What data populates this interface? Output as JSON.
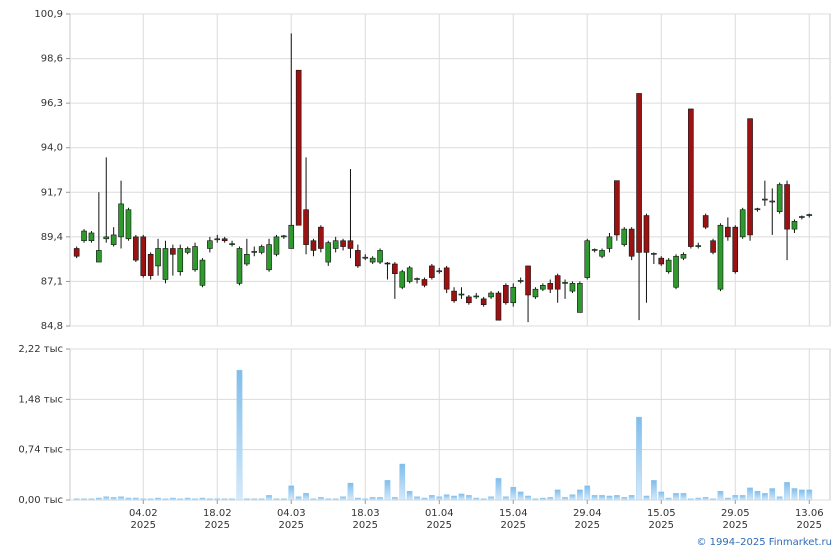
{
  "chart_data": [
    {
      "type": "candlestick",
      "x": [
        "2025-01-22",
        "2025-01-23",
        "2025-01-24",
        "2025-01-27",
        "2025-01-28",
        "2025-01-29",
        "2025-01-30",
        "2025-01-31",
        "2025-02-03",
        "2025-02-04",
        "2025-02-05",
        "2025-02-06",
        "2025-02-07",
        "2025-02-10",
        "2025-02-11",
        "2025-02-12",
        "2025-02-13",
        "2025-02-14",
        "2025-02-17",
        "2025-02-18",
        "2025-02-19",
        "2025-02-20",
        "2025-02-21",
        "2025-02-24",
        "2025-02-25",
        "2025-02-26",
        "2025-02-27",
        "2025-02-28",
        "2025-03-03",
        "2025-03-04",
        "2025-03-05",
        "2025-03-06",
        "2025-03-07",
        "2025-03-10",
        "2025-03-11",
        "2025-03-12",
        "2025-03-13",
        "2025-03-14",
        "2025-03-17",
        "2025-03-18",
        "2025-03-19",
        "2025-03-20",
        "2025-03-21",
        "2025-03-24",
        "2025-03-25",
        "2025-03-26",
        "2025-03-27",
        "2025-03-28",
        "2025-03-31",
        "2025-04-01",
        "2025-04-02",
        "2025-04-03",
        "2025-04-04",
        "2025-04-07",
        "2025-04-08",
        "2025-04-09",
        "2025-04-10",
        "2025-04-11",
        "2025-04-14",
        "2025-04-15",
        "2025-04-16",
        "2025-04-17",
        "2025-04-18",
        "2025-04-21",
        "2025-04-22",
        "2025-04-23",
        "2025-04-24",
        "2025-04-25",
        "2025-04-28",
        "2025-04-29",
        "2025-04-30",
        "2025-05-02",
        "2025-05-05",
        "2025-05-06",
        "2025-05-07",
        "2025-05-08",
        "2025-05-12",
        "2025-05-13",
        "2025-05-14",
        "2025-05-15",
        "2025-05-16",
        "2025-05-19",
        "2025-05-20",
        "2025-05-21",
        "2025-05-22",
        "2025-05-23",
        "2025-05-26",
        "2025-05-27",
        "2025-05-28",
        "2025-05-29",
        "2025-05-30",
        "2025-06-02",
        "2025-06-03",
        "2025-06-04",
        "2025-06-05",
        "2025-06-06",
        "2025-06-09",
        "2025-06-10",
        "2025-06-11",
        "2025-06-13"
      ],
      "open": [
        88.8,
        89.2,
        89.2,
        88.1,
        89.3,
        89.0,
        89.4,
        89.3,
        89.4,
        89.4,
        88.5,
        87.9,
        87.2,
        88.8,
        87.6,
        88.6,
        87.7,
        86.9,
        88.8,
        89.25,
        89.3,
        89.0,
        87.0,
        88.0,
        88.6,
        88.6,
        87.7,
        88.5,
        89.4,
        88.8,
        98.0,
        90.8,
        89.2,
        89.9,
        88.1,
        88.8,
        89.2,
        89.2,
        88.7,
        88.3,
        88.1,
        88.1,
        88.05,
        88.0,
        86.8,
        87.1,
        87.2,
        87.2,
        87.9,
        87.6,
        87.8,
        86.6,
        86.4,
        86.3,
        86.3,
        86.2,
        86.3,
        86.5,
        86.9,
        86.0,
        87.1,
        87.9,
        86.3,
        86.7,
        87.0,
        87.4,
        87.0,
        86.6,
        85.5,
        87.3,
        88.7,
        88.4,
        88.8,
        92.3,
        89.0,
        89.8,
        96.8,
        90.5,
        88.5,
        88.3,
        87.6,
        86.8,
        88.3,
        96.0,
        88.9,
        90.5,
        89.2,
        86.7,
        89.9,
        89.9,
        89.4,
        95.5,
        90.8,
        91.3,
        91.2,
        90.7,
        92.1,
        89.8,
        90.4,
        90.5
      ],
      "high": [
        88.9,
        89.8,
        89.7,
        91.7,
        93.5,
        89.9,
        92.3,
        90.9,
        89.5,
        89.5,
        88.6,
        89.3,
        89.2,
        89.0,
        89.0,
        88.9,
        89.1,
        88.3,
        89.4,
        89.5,
        89.4,
        89.2,
        88.9,
        89.3,
        88.9,
        89.0,
        89.3,
        89.5,
        89.5,
        99.9,
        98.0,
        93.5,
        89.3,
        90.0,
        89.2,
        89.4,
        89.3,
        92.9,
        89.0,
        88.5,
        88.4,
        88.8,
        88.1,
        88.1,
        87.7,
        87.9,
        87.3,
        87.3,
        88.0,
        87.8,
        87.9,
        86.8,
        86.8,
        86.4,
        86.5,
        86.3,
        86.6,
        86.6,
        87.0,
        87.0,
        87.3,
        87.9,
        86.8,
        87.0,
        87.2,
        87.5,
        87.2,
        87.1,
        87.1,
        89.3,
        88.8,
        88.8,
        89.6,
        92.3,
        89.9,
        89.9,
        96.8,
        90.6,
        88.6,
        88.4,
        88.3,
        88.5,
        88.6,
        96.0,
        89.1,
        90.6,
        89.3,
        90.1,
        90.4,
        90.0,
        90.9,
        95.5,
        90.9,
        92.3,
        91.9,
        92.2,
        92.3,
        90.3,
        90.5,
        90.6
      ],
      "low": [
        88.3,
        89.1,
        89.1,
        88.1,
        89.1,
        88.9,
        88.8,
        89.2,
        88.1,
        87.3,
        87.2,
        87.4,
        87.0,
        87.4,
        87.4,
        88.5,
        87.6,
        86.8,
        88.6,
        89.1,
        89.1,
        88.9,
        86.9,
        87.9,
        88.4,
        88.5,
        87.6,
        88.4,
        89.3,
        88.8,
        90.0,
        88.5,
        88.4,
        88.6,
        87.9,
        88.6,
        88.7,
        88.3,
        87.8,
        88.2,
        88.0,
        88.0,
        87.2,
        86.2,
        86.7,
        87.0,
        87.0,
        86.8,
        87.2,
        87.5,
        86.5,
        86.0,
        86.2,
        85.9,
        86.2,
        85.8,
        86.2,
        85.1,
        85.9,
        85.8,
        87.0,
        85.0,
        86.2,
        86.6,
        86.5,
        86.0,
        86.2,
        86.5,
        85.5,
        87.2,
        88.6,
        88.3,
        88.6,
        89.2,
        88.9,
        88.2,
        85.1,
        86.0,
        88.0,
        87.9,
        87.5,
        86.7,
        88.2,
        88.8,
        88.8,
        89.8,
        88.5,
        86.6,
        89.2,
        87.5,
        89.3,
        89.2,
        90.7,
        91.0,
        89.5,
        90.6,
        88.2,
        89.6,
        90.3,
        90.4
      ],
      "close": [
        88.4,
        89.7,
        89.6,
        88.7,
        89.4,
        89.5,
        91.1,
        90.8,
        88.2,
        87.4,
        87.4,
        88.8,
        88.8,
        88.5,
        88.8,
        88.8,
        88.9,
        88.2,
        89.2,
        89.3,
        89.2,
        89.05,
        88.8,
        88.5,
        88.65,
        88.9,
        89.0,
        89.4,
        89.45,
        90.0,
        90.0,
        89.0,
        88.7,
        88.8,
        89.1,
        89.2,
        88.9,
        88.8,
        87.9,
        88.35,
        88.3,
        88.7,
        88.0,
        87.5,
        87.6,
        87.8,
        87.25,
        86.9,
        87.3,
        87.65,
        86.7,
        86.1,
        86.45,
        86.0,
        86.35,
        85.9,
        86.5,
        85.1,
        86.0,
        86.8,
        87.15,
        86.4,
        86.7,
        86.9,
        86.7,
        86.7,
        87.05,
        87.0,
        87.0,
        89.2,
        88.75,
        88.7,
        89.4,
        89.5,
        89.8,
        88.4,
        88.6,
        88.6,
        88.55,
        88.0,
        88.2,
        88.4,
        88.5,
        88.9,
        88.95,
        89.9,
        88.6,
        90.0,
        89.4,
        87.6,
        90.8,
        89.5,
        90.85,
        91.35,
        91.25,
        92.1,
        89.8,
        90.2,
        90.45,
        90.55
      ],
      "up_color": "#2e9a2e",
      "down_color": "#9b1212",
      "ylim": [
        84.8,
        100.9
      ],
      "yticks": [
        {
          "value": 84.8,
          "label": "84,8"
        },
        {
          "value": 87.1,
          "label": "87,1"
        },
        {
          "value": 89.4,
          "label": "89,4"
        },
        {
          "value": 91.7,
          "label": "91,7"
        },
        {
          "value": 94.0,
          "label": "94,0"
        },
        {
          "value": 96.3,
          "label": "96,3"
        },
        {
          "value": 98.6,
          "label": "98,6"
        },
        {
          "value": 100.9,
          "label": "100,9"
        }
      ],
      "grid": true
    },
    {
      "type": "bar",
      "x": [
        "2025-01-22",
        "2025-01-23",
        "2025-01-24",
        "2025-01-27",
        "2025-01-28",
        "2025-01-29",
        "2025-01-30",
        "2025-01-31",
        "2025-02-03",
        "2025-02-04",
        "2025-02-05",
        "2025-02-06",
        "2025-02-07",
        "2025-02-10",
        "2025-02-11",
        "2025-02-12",
        "2025-02-13",
        "2025-02-14",
        "2025-02-17",
        "2025-02-18",
        "2025-02-19",
        "2025-02-20",
        "2025-02-21",
        "2025-02-24",
        "2025-02-25",
        "2025-02-26",
        "2025-02-27",
        "2025-02-28",
        "2025-03-03",
        "2025-03-04",
        "2025-03-05",
        "2025-03-06",
        "2025-03-07",
        "2025-03-10",
        "2025-03-11",
        "2025-03-12",
        "2025-03-13",
        "2025-03-14",
        "2025-03-17",
        "2025-03-18",
        "2025-03-19",
        "2025-03-20",
        "2025-03-21",
        "2025-03-24",
        "2025-03-25",
        "2025-03-26",
        "2025-03-27",
        "2025-03-28",
        "2025-03-31",
        "2025-04-01",
        "2025-04-02",
        "2025-04-03",
        "2025-04-04",
        "2025-04-07",
        "2025-04-08",
        "2025-04-09",
        "2025-04-10",
        "2025-04-11",
        "2025-04-14",
        "2025-04-15",
        "2025-04-16",
        "2025-04-17",
        "2025-04-18",
        "2025-04-21",
        "2025-04-22",
        "2025-04-23",
        "2025-04-24",
        "2025-04-25",
        "2025-04-28",
        "2025-04-29",
        "2025-04-30",
        "2025-05-02",
        "2025-05-05",
        "2025-05-06",
        "2025-05-07",
        "2025-05-08",
        "2025-05-12",
        "2025-05-13",
        "2025-05-14",
        "2025-05-15",
        "2025-05-16",
        "2025-05-19",
        "2025-05-20",
        "2025-05-21",
        "2025-05-22",
        "2025-05-23",
        "2025-05-26",
        "2025-05-27",
        "2025-05-28",
        "2025-05-29",
        "2025-05-30",
        "2025-06-02",
        "2025-06-03",
        "2025-06-04",
        "2025-06-05",
        "2025-06-06",
        "2025-06-09",
        "2025-06-10",
        "2025-06-11",
        "2025-06-13"
      ],
      "values": [
        0.02,
        0.02,
        0.02,
        0.03,
        0.05,
        0.04,
        0.05,
        0.03,
        0.03,
        0.02,
        0.02,
        0.03,
        0.02,
        0.03,
        0.02,
        0.03,
        0.02,
        0.03,
        0.02,
        0.02,
        0.02,
        0.02,
        1.91,
        0.02,
        0.02,
        0.02,
        0.07,
        0.02,
        0.02,
        0.21,
        0.05,
        0.1,
        0.02,
        0.04,
        0.02,
        0.02,
        0.05,
        0.25,
        0.03,
        0.02,
        0.04,
        0.04,
        0.29,
        0.04,
        0.53,
        0.13,
        0.05,
        0.03,
        0.07,
        0.05,
        0.08,
        0.06,
        0.09,
        0.07,
        0.03,
        0.02,
        0.05,
        0.32,
        0.05,
        0.19,
        0.12,
        0.06,
        0.02,
        0.03,
        0.04,
        0.15,
        0.04,
        0.08,
        0.15,
        0.21,
        0.07,
        0.07,
        0.06,
        0.07,
        0.04,
        0.07,
        1.22,
        0.06,
        0.29,
        0.12,
        0.03,
        0.1,
        0.1,
        0.02,
        0.03,
        0.04,
        0.02,
        0.13,
        0.03,
        0.07,
        0.07,
        0.18,
        0.13,
        0.1,
        0.17,
        0.05,
        0.26,
        0.17,
        0.15,
        0.15
      ],
      "color": "#8ec6ef",
      "ylim": [
        0,
        2.22
      ],
      "yticks": [
        {
          "value": 0,
          "label": "0,00 тыс"
        },
        {
          "value": 0.74,
          "label": "0,74 тыс"
        },
        {
          "value": 1.48,
          "label": "1,48 тыс"
        },
        {
          "value": 2.22,
          "label": "2,22 тыс"
        }
      ],
      "xticks": [
        {
          "value": "2025-02-04",
          "label": [
            "04.02",
            "2025"
          ]
        },
        {
          "value": "2025-02-18",
          "label": [
            "18.02",
            "2025"
          ]
        },
        {
          "value": "2025-03-04",
          "label": [
            "04.03",
            "2025"
          ]
        },
        {
          "value": "2025-03-18",
          "label": [
            "18.03",
            "2025"
          ]
        },
        {
          "value": "2025-04-01",
          "label": [
            "01.04",
            "2025"
          ]
        },
        {
          "value": "2025-04-15",
          "label": [
            "15.04",
            "2025"
          ]
        },
        {
          "value": "2025-04-29",
          "label": [
            "29.04",
            "2025"
          ]
        },
        {
          "value": "2025-05-15",
          "label": [
            "15.05",
            "2025"
          ]
        },
        {
          "value": "2025-05-29",
          "label": [
            "29.05",
            "2025"
          ]
        },
        {
          "value": "2025-06-13",
          "label": [
            "13.06",
            "2025"
          ]
        }
      ],
      "grid": true
    }
  ],
  "footer": "© 1994–2025 Finmarket.ru"
}
